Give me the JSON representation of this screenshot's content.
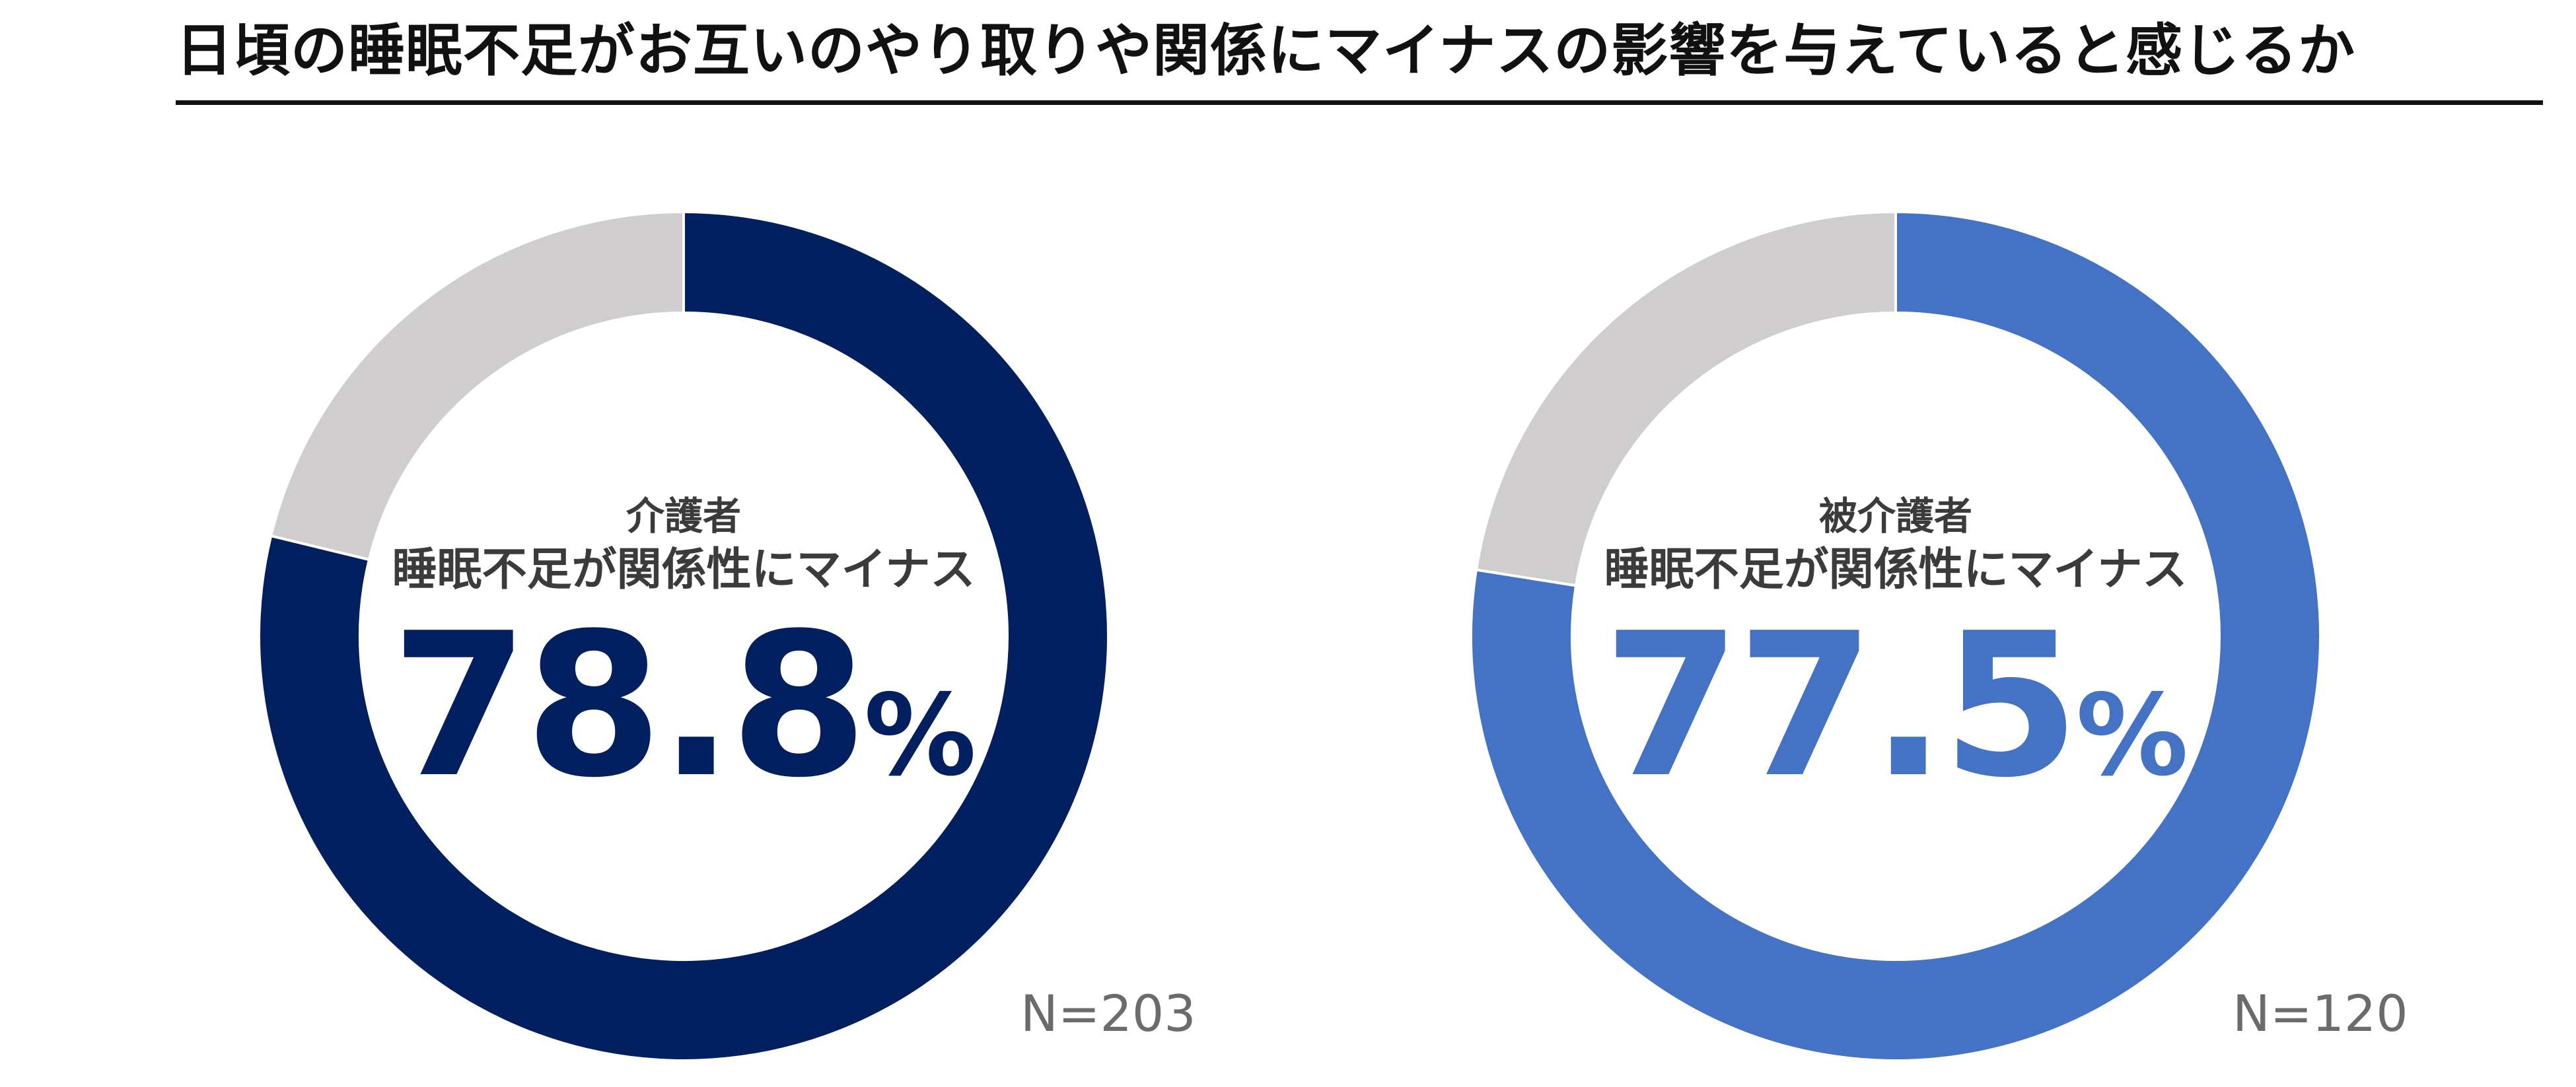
{
  "title": "日頃の睡眠不足がお互いのやり取りや関係にマイナスの影響を与えていると感じるか",
  "chart_data": [
    {
      "type": "pie",
      "group_label": "介護者",
      "metric_label": "睡眠不足が関係性にマイナス",
      "value": 78.8,
      "value_text": "78.8",
      "unit": "%",
      "n_label": "N=203",
      "color": "#021f5f",
      "rest_color": "#cfcdcd"
    },
    {
      "type": "pie",
      "group_label": "被介護者",
      "metric_label": "睡眠不足が関係性にマイナス",
      "value": 77.5,
      "value_text": "77.5",
      "unit": "%",
      "n_label": "N=120",
      "color": "#4472c4",
      "rest_color": "#cfcdcd"
    }
  ]
}
